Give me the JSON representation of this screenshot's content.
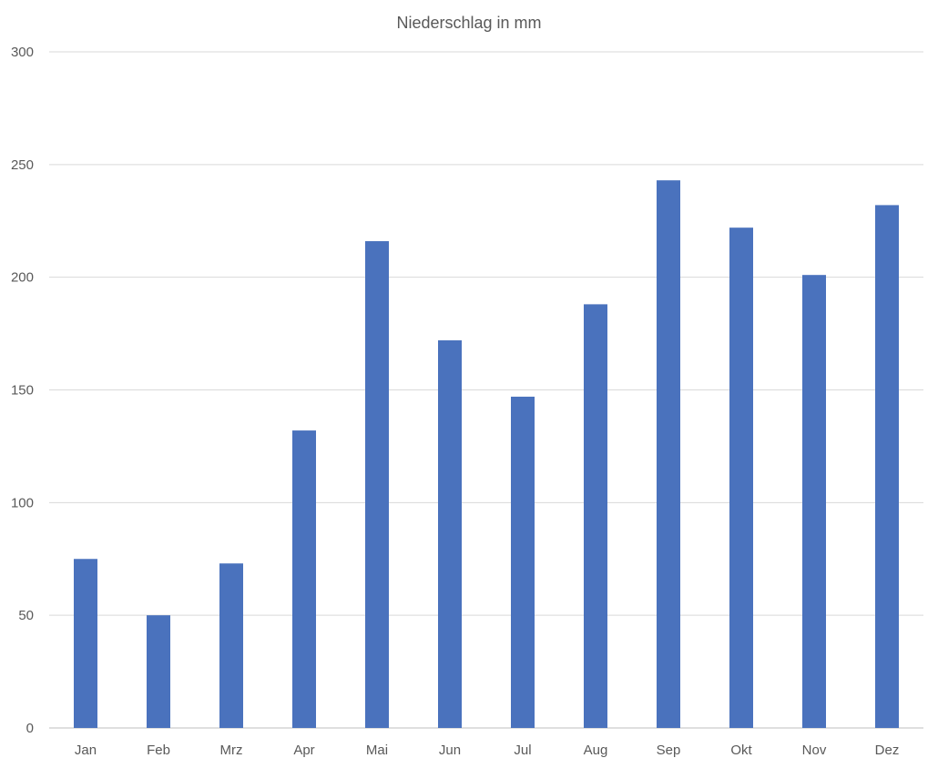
{
  "chart_data": {
    "type": "bar",
    "title": "Niederschlag in mm",
    "xlabel": "",
    "ylabel": "",
    "categories": [
      "Jan",
      "Feb",
      "Mrz",
      "Apr",
      "Mai",
      "Jun",
      "Jul",
      "Aug",
      "Sep",
      "Okt",
      "Nov",
      "Dez"
    ],
    "series": [
      {
        "values": [
          75,
          50,
          73,
          132,
          216,
          172,
          147,
          188,
          243,
          222,
          201,
          232
        ]
      }
    ],
    "ylim": [
      0,
      300
    ],
    "yticks": [
      "0",
      "50",
      "100",
      "150",
      "200",
      "250",
      "300"
    ],
    "grid": true,
    "legend": "none",
    "bar_color": "#4A72BD"
  }
}
